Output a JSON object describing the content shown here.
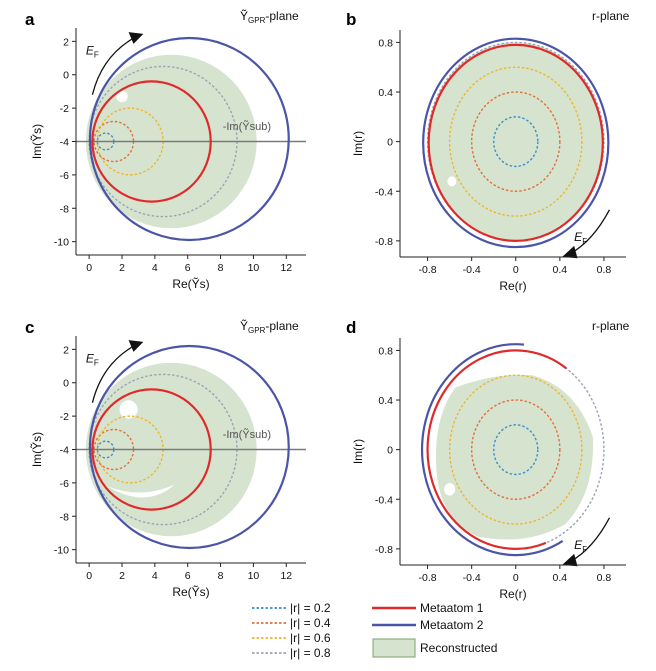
{
  "colors": {
    "r02": "#3a8fd0",
    "r04": "#e0703c",
    "r06": "#f0b42c",
    "r08": "#9aa3b8",
    "metaatom1": "#e02a2a",
    "metaatom2": "#4a55a8",
    "reconstructed": "#d6e4cf",
    "axis": "#7a7a7a"
  },
  "legend": {
    "r02": "|r| = 0.2",
    "r04": "|r| = 0.4",
    "r06": "|r| = 0.6",
    "r08": "|r| = 0.8",
    "metaatom1": "Metaatom 1",
    "metaatom2": "Metaatom 2",
    "reconstructed": "Reconstructed"
  },
  "chart_data": [
    {
      "id": "a",
      "type": "scatter",
      "panel_label": "a",
      "title": "Ỹ_GPR-plane",
      "xlabel": "Re(Ỹs)",
      "ylabel": "Im(Ỹs)",
      "xlim": [
        -0.8,
        13.2
      ],
      "ylim": [
        -10.8,
        2.8
      ],
      "xticks": [
        0,
        2,
        4,
        6,
        8,
        10,
        12
      ],
      "yticks": [
        2,
        0,
        -2,
        -4,
        -6,
        -8,
        -10
      ],
      "annotation": "-Im(Ỹsub)",
      "energy_arrow": "E_F",
      "constant_r_circles": [
        {
          "r": 0.2,
          "center": [
            1.0,
            -4.0
          ],
          "radius": 0.5
        },
        {
          "r": 0.4,
          "center": [
            1.5,
            -4.0
          ],
          "radius": 1.2
        },
        {
          "r": 0.6,
          "center": [
            2.5,
            -4.0
          ],
          "radius": 2.0
        },
        {
          "r": 0.8,
          "center": [
            4.5,
            -4.0
          ],
          "radius": 4.5
        }
      ],
      "metaatom1_circle": {
        "center": [
          3.8,
          -4.0
        ],
        "radius": 3.6
      },
      "metaatom2_circle": {
        "center": [
          6.1,
          -3.85
        ],
        "radius": 6.05
      },
      "reconstructed_region": {
        "center": [
          5.0,
          -4.0
        ],
        "radius": 5.2
      }
    },
    {
      "id": "b",
      "type": "scatter",
      "panel_label": "b",
      "title": "r-plane",
      "xlabel": "Re(r)",
      "ylabel": "Im(r)",
      "xlim": [
        -1.05,
        1.0
      ],
      "ylim": [
        -0.93,
        0.9
      ],
      "xticks": [
        -0.8,
        -0.4,
        0,
        0.4,
        0.8
      ],
      "yticks": [
        0.8,
        0.4,
        0,
        -0.4,
        -0.8
      ],
      "energy_arrow": "E_F",
      "constant_r_circles": [
        0.2,
        0.4,
        0.6,
        0.8
      ],
      "metaatom1_circle": {
        "center": [
          0.0,
          -0.01
        ],
        "radius": 0.79
      },
      "metaatom2_circle": {
        "center": [
          0.0,
          -0.01
        ],
        "radius": 0.84
      },
      "reconstructed_region": {
        "center": [
          0.0,
          0.0
        ],
        "radius": 0.8
      }
    },
    {
      "id": "c",
      "type": "scatter",
      "panel_label": "c",
      "title": "Ỹ_GPR-plane",
      "xlabel": "Re(Ỹs)",
      "ylabel": "Im(Ỹs)",
      "xlim": [
        -0.8,
        13.2
      ],
      "ylim": [
        -10.8,
        2.8
      ],
      "xticks": [
        0,
        2,
        4,
        6,
        8,
        10,
        12
      ],
      "yticks": [
        2,
        0,
        -2,
        -4,
        -6,
        -8,
        -10
      ],
      "annotation": "-Im(Ỹsub)",
      "energy_arrow": "E_F",
      "constant_r_circles": [
        {
          "r": 0.2,
          "center": [
            1.0,
            -4.0
          ],
          "radius": 0.5
        },
        {
          "r": 0.4,
          "center": [
            1.5,
            -4.0
          ],
          "radius": 1.2
        },
        {
          "r": 0.6,
          "center": [
            2.5,
            -4.0
          ],
          "radius": 2.0
        },
        {
          "r": 0.8,
          "center": [
            4.5,
            -4.0
          ],
          "radius": 4.5
        }
      ],
      "metaatom1_circle": {
        "center": [
          3.8,
          -4.0
        ],
        "radius": 3.6
      },
      "metaatom2_circle": {
        "center": [
          6.1,
          -3.85
        ],
        "radius": 6.05
      },
      "reconstructed_region": {
        "center": [
          5.0,
          -4.0
        ],
        "radius": 5.2
      }
    },
    {
      "id": "d",
      "type": "scatter",
      "panel_label": "d",
      "title": "r-plane",
      "xlabel": "Re(r)",
      "ylabel": "Im(r)",
      "xlim": [
        -1.05,
        1.0
      ],
      "ylim": [
        -0.93,
        0.9
      ],
      "xticks": [
        -0.8,
        -0.4,
        0,
        0.4,
        0.8
      ],
      "yticks": [
        0.8,
        0.4,
        0,
        -0.4,
        -0.8
      ],
      "energy_arrow": "E_F",
      "constant_r_circles": [
        0.2,
        0.4,
        0.6,
        0.8
      ],
      "metaatom1_arc": {
        "center": [
          0.0,
          0.0
        ],
        "radius": 0.8,
        "from_deg": 55,
        "to_deg": 290
      },
      "metaatom2_arc": {
        "center": [
          0.0,
          0.0
        ],
        "radius": 0.85,
        "from_deg": 85,
        "to_deg": 300
      },
      "reconstructed_region": {
        "center": [
          0.0,
          0.0
        ],
        "radius": 0.64
      }
    }
  ]
}
